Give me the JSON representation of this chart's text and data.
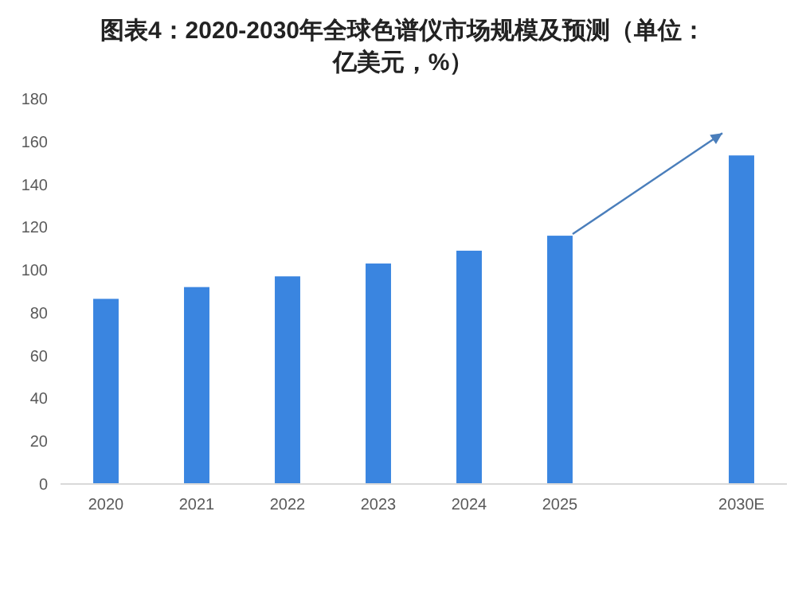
{
  "chart_data": {
    "type": "bar",
    "title": "图表4：2020-2030年全球色谱仪市场规模及预测（单位：亿美元，%）",
    "categories": [
      "2020",
      "2021",
      "2022",
      "2023",
      "2024",
      "2025",
      null,
      "2030E"
    ],
    "values": [
      86.5,
      92,
      97,
      103,
      109,
      116,
      null,
      153.5
    ],
    "color": "#3a85e0",
    "ylim": [
      0,
      180
    ],
    "yticks": [
      0,
      20,
      40,
      60,
      80,
      100,
      120,
      140,
      160,
      180
    ],
    "grid": false
  }
}
